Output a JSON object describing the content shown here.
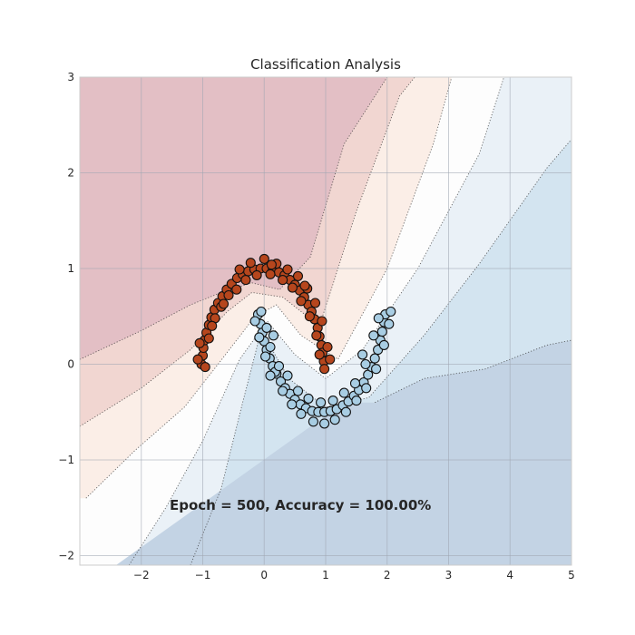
{
  "chart_data": {
    "type": "scatter",
    "title": "Classification Analysis",
    "xlabel": "",
    "ylabel": "",
    "xlim": [
      -3,
      5
    ],
    "ylim": [
      -2.1,
      3
    ],
    "xticks": [
      -2,
      -1,
      0,
      1,
      2,
      3,
      4,
      5
    ],
    "yticks": [
      -2,
      -1,
      0,
      1,
      2,
      3
    ],
    "tick_labels": {
      "x": [
        "−2",
        "−1",
        "0",
        "1",
        "2",
        "3",
        "4",
        "5"
      ],
      "y": [
        "−2",
        "−1",
        "0",
        "1",
        "2",
        "3"
      ]
    },
    "grid": true,
    "legend": "none",
    "annotation": "Epoch = 500, Accuracy = 100.00%",
    "decision_regions": {
      "style": "filled contours with dotted boundary lines",
      "colors": [
        "#e3bfc5",
        "#f1d6d1",
        "#fbeee7",
        "#fdfdfd",
        "#eaf1f7",
        "#d3e4f0",
        "#c3d3e4"
      ],
      "boundaries": [
        {
          "name": "level-1",
          "x": [
            -3.0,
            -2.0,
            -1.2,
            -0.7,
            -0.2,
            0.25,
            0.75,
            1.3,
            2.0
          ],
          "y": [
            0.05,
            0.35,
            0.62,
            0.75,
            0.85,
            0.78,
            1.12,
            2.3,
            3.0
          ]
        },
        {
          "name": "level-2",
          "x": [
            -3.0,
            -2.0,
            -1.2,
            -0.6,
            -0.2,
            0.3,
            0.9,
            1.5,
            2.2,
            2.45
          ],
          "y": [
            -0.65,
            -0.25,
            0.15,
            0.55,
            0.75,
            0.7,
            0.4,
            1.6,
            2.8,
            3.0
          ]
        },
        {
          "name": "level-3",
          "x": [
            -2.9,
            -2.1,
            -1.3,
            -0.75,
            -0.15,
            0.2,
            0.6,
            1.2,
            2.0,
            2.75,
            3.05
          ],
          "y": [
            -1.4,
            -0.9,
            -0.45,
            0.0,
            0.5,
            0.62,
            0.3,
            0.05,
            1.0,
            2.3,
            3.0
          ]
        },
        {
          "name": "level-4",
          "x": [
            -2.2,
            -1.6,
            -1.0,
            -0.4,
            0.05,
            0.5,
            1.0,
            1.6,
            2.5,
            3.5,
            3.9
          ],
          "y": [
            -2.1,
            -1.5,
            -0.8,
            0.05,
            0.45,
            0.1,
            -0.15,
            0.15,
            1.0,
            2.2,
            3.0
          ]
        },
        {
          "name": "level-5",
          "x": [
            -1.2,
            -0.7,
            -0.35,
            -0.05,
            0.4,
            1.0,
            1.7,
            2.6,
            3.5,
            4.6,
            5.0
          ],
          "y": [
            -2.1,
            -1.3,
            -0.4,
            0.35,
            -0.15,
            -0.45,
            -0.35,
            0.3,
            1.05,
            2.05,
            2.35
          ]
        },
        {
          "name": "level-6",
          "x": [
            1.8,
            2.6,
            3.6,
            4.6,
            5.0
          ],
          "y": [
            -0.4,
            -0.15,
            -0.05,
            0.2,
            0.25
          ]
        }
      ]
    },
    "series": [
      {
        "name": "",
        "color": "#b6461d",
        "points": [
          [
            -1.02,
            0.0
          ],
          [
            -1.0,
            0.09
          ],
          [
            -0.99,
            0.17
          ],
          [
            -0.97,
            0.25
          ],
          [
            -0.94,
            0.33
          ],
          [
            -0.9,
            0.41
          ],
          [
            -0.86,
            0.49
          ],
          [
            -0.81,
            0.57
          ],
          [
            -0.75,
            0.64
          ],
          [
            -0.68,
            0.71
          ],
          [
            -0.61,
            0.78
          ],
          [
            -0.53,
            0.84
          ],
          [
            -0.44,
            0.9
          ],
          [
            -0.35,
            0.94
          ],
          [
            -0.26,
            0.97
          ],
          [
            -0.16,
            0.99
          ],
          [
            -0.06,
            1.0
          ],
          [
            0.04,
            1.0
          ],
          [
            0.14,
            0.99
          ],
          [
            0.24,
            0.96
          ],
          [
            0.33,
            0.93
          ],
          [
            0.42,
            0.88
          ],
          [
            0.5,
            0.83
          ],
          [
            0.58,
            0.77
          ],
          [
            0.65,
            0.7
          ],
          [
            0.72,
            0.62
          ],
          [
            0.77,
            0.55
          ],
          [
            0.82,
            0.47
          ],
          [
            0.87,
            0.38
          ],
          [
            0.9,
            0.29
          ],
          [
            0.93,
            0.2
          ],
          [
            0.95,
            0.12
          ],
          [
            0.97,
            0.03
          ],
          [
            0.98,
            -0.05
          ],
          [
            -1.08,
            0.05
          ],
          [
            -0.9,
            0.27
          ],
          [
            -0.8,
            0.48
          ],
          [
            -0.58,
            0.72
          ],
          [
            -0.4,
            0.99
          ],
          [
            -0.22,
            1.06
          ],
          [
            0.0,
            1.1
          ],
          [
            0.2,
            1.05
          ],
          [
            0.38,
            0.99
          ],
          [
            0.55,
            0.92
          ],
          [
            0.7,
            0.79
          ],
          [
            0.83,
            0.64
          ],
          [
            1.03,
            0.18
          ],
          [
            1.07,
            0.05
          ],
          [
            -1.05,
            0.22
          ],
          [
            -0.85,
            0.4
          ],
          [
            -0.7,
            0.6
          ],
          [
            -0.45,
            0.78
          ],
          [
            -0.3,
            0.88
          ],
          [
            -0.12,
            0.93
          ],
          [
            0.1,
            0.94
          ],
          [
            0.3,
            0.88
          ],
          [
            0.46,
            0.8
          ],
          [
            0.6,
            0.66
          ],
          [
            0.74,
            0.5
          ],
          [
            0.85,
            0.3
          ],
          [
            0.9,
            0.1
          ],
          [
            -0.96,
            -0.03
          ],
          [
            -0.66,
            0.63
          ],
          [
            0.12,
            1.04
          ],
          [
            0.66,
            0.82
          ],
          [
            0.94,
            0.45
          ]
        ]
      },
      {
        "name": "",
        "color": "#a8cde3",
        "points": [
          [
            -0.1,
            0.52
          ],
          [
            -0.06,
            0.42
          ],
          [
            -0.03,
            0.33
          ],
          [
            0.0,
            0.24
          ],
          [
            0.04,
            0.15
          ],
          [
            0.09,
            0.06
          ],
          [
            0.14,
            -0.02
          ],
          [
            0.2,
            -0.1
          ],
          [
            0.27,
            -0.18
          ],
          [
            0.34,
            -0.25
          ],
          [
            0.42,
            -0.31
          ],
          [
            0.5,
            -0.37
          ],
          [
            0.59,
            -0.42
          ],
          [
            0.68,
            -0.46
          ],
          [
            0.78,
            -0.49
          ],
          [
            0.88,
            -0.5
          ],
          [
            0.98,
            -0.5
          ],
          [
            1.08,
            -0.49
          ],
          [
            1.18,
            -0.47
          ],
          [
            1.28,
            -0.43
          ],
          [
            1.37,
            -0.39
          ],
          [
            1.46,
            -0.33
          ],
          [
            1.54,
            -0.27
          ],
          [
            1.62,
            -0.19
          ],
          [
            1.69,
            -0.11
          ],
          [
            1.75,
            -0.03
          ],
          [
            1.8,
            0.06
          ],
          [
            1.85,
            0.15
          ],
          [
            1.89,
            0.25
          ],
          [
            1.92,
            0.34
          ],
          [
            1.95,
            0.44
          ],
          [
            1.97,
            0.52
          ],
          [
            -0.05,
            0.55
          ],
          [
            0.04,
            0.38
          ],
          [
            0.1,
            0.18
          ],
          [
            0.18,
            -0.08
          ],
          [
            0.3,
            -0.28
          ],
          [
            0.45,
            -0.42
          ],
          [
            0.6,
            -0.52
          ],
          [
            0.8,
            -0.6
          ],
          [
            0.98,
            -0.62
          ],
          [
            1.15,
            -0.58
          ],
          [
            1.33,
            -0.5
          ],
          [
            1.5,
            -0.38
          ],
          [
            1.66,
            -0.25
          ],
          [
            1.82,
            -0.05
          ],
          [
            1.95,
            0.2
          ],
          [
            2.03,
            0.42
          ],
          [
            2.06,
            0.55
          ],
          [
            -0.15,
            0.45
          ],
          [
            -0.08,
            0.28
          ],
          [
            0.02,
            0.08
          ],
          [
            0.1,
            -0.12
          ],
          [
            0.24,
            -0.02
          ],
          [
            0.38,
            -0.12
          ],
          [
            0.55,
            -0.28
          ],
          [
            0.72,
            -0.36
          ],
          [
            0.92,
            -0.4
          ],
          [
            1.12,
            -0.38
          ],
          [
            1.3,
            -0.3
          ],
          [
            1.48,
            -0.2
          ],
          [
            1.65,
            0.0
          ],
          [
            1.78,
            0.3
          ],
          [
            1.86,
            0.48
          ],
          [
            0.15,
            0.3
          ],
          [
            1.6,
            0.1
          ]
        ]
      }
    ]
  }
}
